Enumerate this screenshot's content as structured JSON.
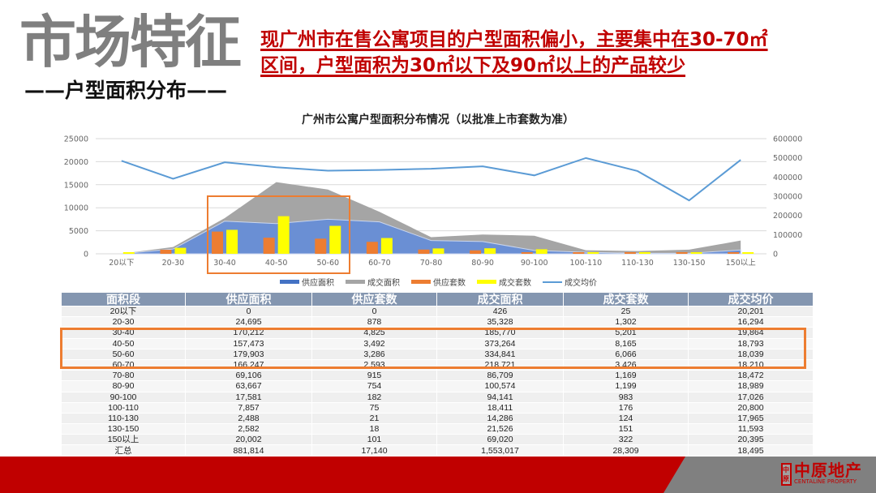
{
  "header": {
    "title": "市场特征",
    "subtitle": "——户型面积分布——",
    "headline_line1": "现广州市在售公寓项目的户型面积偏小，主要集中在30-70㎡",
    "headline_line2": "区间，户型面积为30㎡以下及90㎡以上的产品较少"
  },
  "chart": {
    "title": "广州市公寓户型面积分布情况（以批准上市套数为准）",
    "left_ticks": [
      "25000",
      "20000",
      "15000",
      "10000",
      "5000",
      "0"
    ],
    "right_ticks": [
      "600000",
      "500000",
      "400000",
      "300000",
      "200000",
      "100000",
      "0"
    ],
    "categories": [
      "20以下",
      "20-30",
      "30-40",
      "40-50",
      "50-60",
      "60-70",
      "70-80",
      "80-90",
      "90-100",
      "100-110",
      "110-130",
      "130-150",
      "150以上"
    ],
    "legend": [
      {
        "label": "供应面积",
        "color": "#4472c4",
        "type": "area"
      },
      {
        "label": "成交面积",
        "color": "#a5a5a5",
        "type": "area"
      },
      {
        "label": "供应套数",
        "color": "#ed7d31",
        "type": "bar"
      },
      {
        "label": "成交套数",
        "color": "#ffff00",
        "type": "bar"
      },
      {
        "label": "成交均价",
        "color": "#5b9bd5",
        "type": "line"
      }
    ]
  },
  "chart_data": {
    "type": "bar",
    "title": "广州市公寓户型面积分布情况（以批准上市套数为准）",
    "xlabel": "",
    "ylabel": "",
    "ylim": [
      0,
      25000
    ],
    "y2lim": [
      0,
      600000
    ],
    "legend_position": "bottom",
    "grid": true,
    "categories": [
      "20以下",
      "20-30",
      "30-40",
      "40-50",
      "50-60",
      "60-70",
      "70-80",
      "80-90",
      "90-100",
      "100-110",
      "110-130",
      "130-150",
      "150以上"
    ],
    "series": [
      {
        "name": "供应面积",
        "type": "area",
        "axis": "right",
        "values": [
          0,
          24695,
          170212,
          157473,
          179903,
          166247,
          69106,
          63667,
          17581,
          7857,
          2488,
          2582,
          20002
        ]
      },
      {
        "name": "成交面积",
        "type": "area",
        "axis": "right",
        "values": [
          426,
          35328,
          185770,
          373264,
          334841,
          218721,
          86709,
          100574,
          94141,
          18411,
          14286,
          21526,
          69020
        ]
      },
      {
        "name": "供应套数",
        "type": "bar",
        "axis": "left",
        "values": [
          0,
          878,
          4825,
          3492,
          3286,
          2593,
          915,
          754,
          182,
          75,
          21,
          18,
          101
        ]
      },
      {
        "name": "成交套数",
        "type": "bar",
        "axis": "left",
        "values": [
          25,
          1302,
          5201,
          8165,
          6066,
          3426,
          1169,
          1199,
          983,
          176,
          124,
          151,
          322
        ]
      },
      {
        "name": "成交均价",
        "type": "line",
        "axis": "left",
        "values": [
          20201,
          16294,
          19864,
          18793,
          18039,
          18210,
          18472,
          18989,
          17026,
          20800,
          17965,
          11593,
          20395
        ]
      }
    ]
  },
  "table": {
    "headers": [
      "面积段",
      "供应面积",
      "供应套数",
      "成交面积",
      "成交套数",
      "成交均价"
    ],
    "rows": [
      [
        "20以下",
        "0",
        "0",
        "426",
        "25",
        "20,201"
      ],
      [
        "20-30",
        "24,695",
        "878",
        "35,328",
        "1,302",
        "16,294"
      ],
      [
        "30-40",
        "170,212",
        "4,825",
        "185,770",
        "5,201",
        "19,864"
      ],
      [
        "40-50",
        "157,473",
        "3,492",
        "373,264",
        "8,165",
        "18,793"
      ],
      [
        "50-60",
        "179,903",
        "3,286",
        "334,841",
        "6,066",
        "18,039"
      ],
      [
        "60-70",
        "166,247",
        "2,593",
        "218,721",
        "3,426",
        "18,210"
      ],
      [
        "70-80",
        "69,106",
        "915",
        "86,709",
        "1,169",
        "18,472"
      ],
      [
        "80-90",
        "63,667",
        "754",
        "100,574",
        "1,199",
        "18,989"
      ],
      [
        "90-100",
        "17,581",
        "182",
        "94,141",
        "983",
        "17,026"
      ],
      [
        "100-110",
        "7,857",
        "75",
        "18,411",
        "176",
        "20,800"
      ],
      [
        "110-130",
        "2,488",
        "21",
        "14,286",
        "124",
        "17,965"
      ],
      [
        "130-150",
        "2,582",
        "18",
        "21,526",
        "151",
        "11,593"
      ],
      [
        "150以上",
        "20,002",
        "101",
        "69,020",
        "322",
        "20,395"
      ],
      [
        "汇总",
        "881,814",
        "17,140",
        "1,553,017",
        "28,309",
        "18,495"
      ]
    ]
  },
  "footer": {
    "logo_cn": "中原地产",
    "logo_en": "CENTALINE PROPERTY",
    "logo_mark": "中原"
  }
}
